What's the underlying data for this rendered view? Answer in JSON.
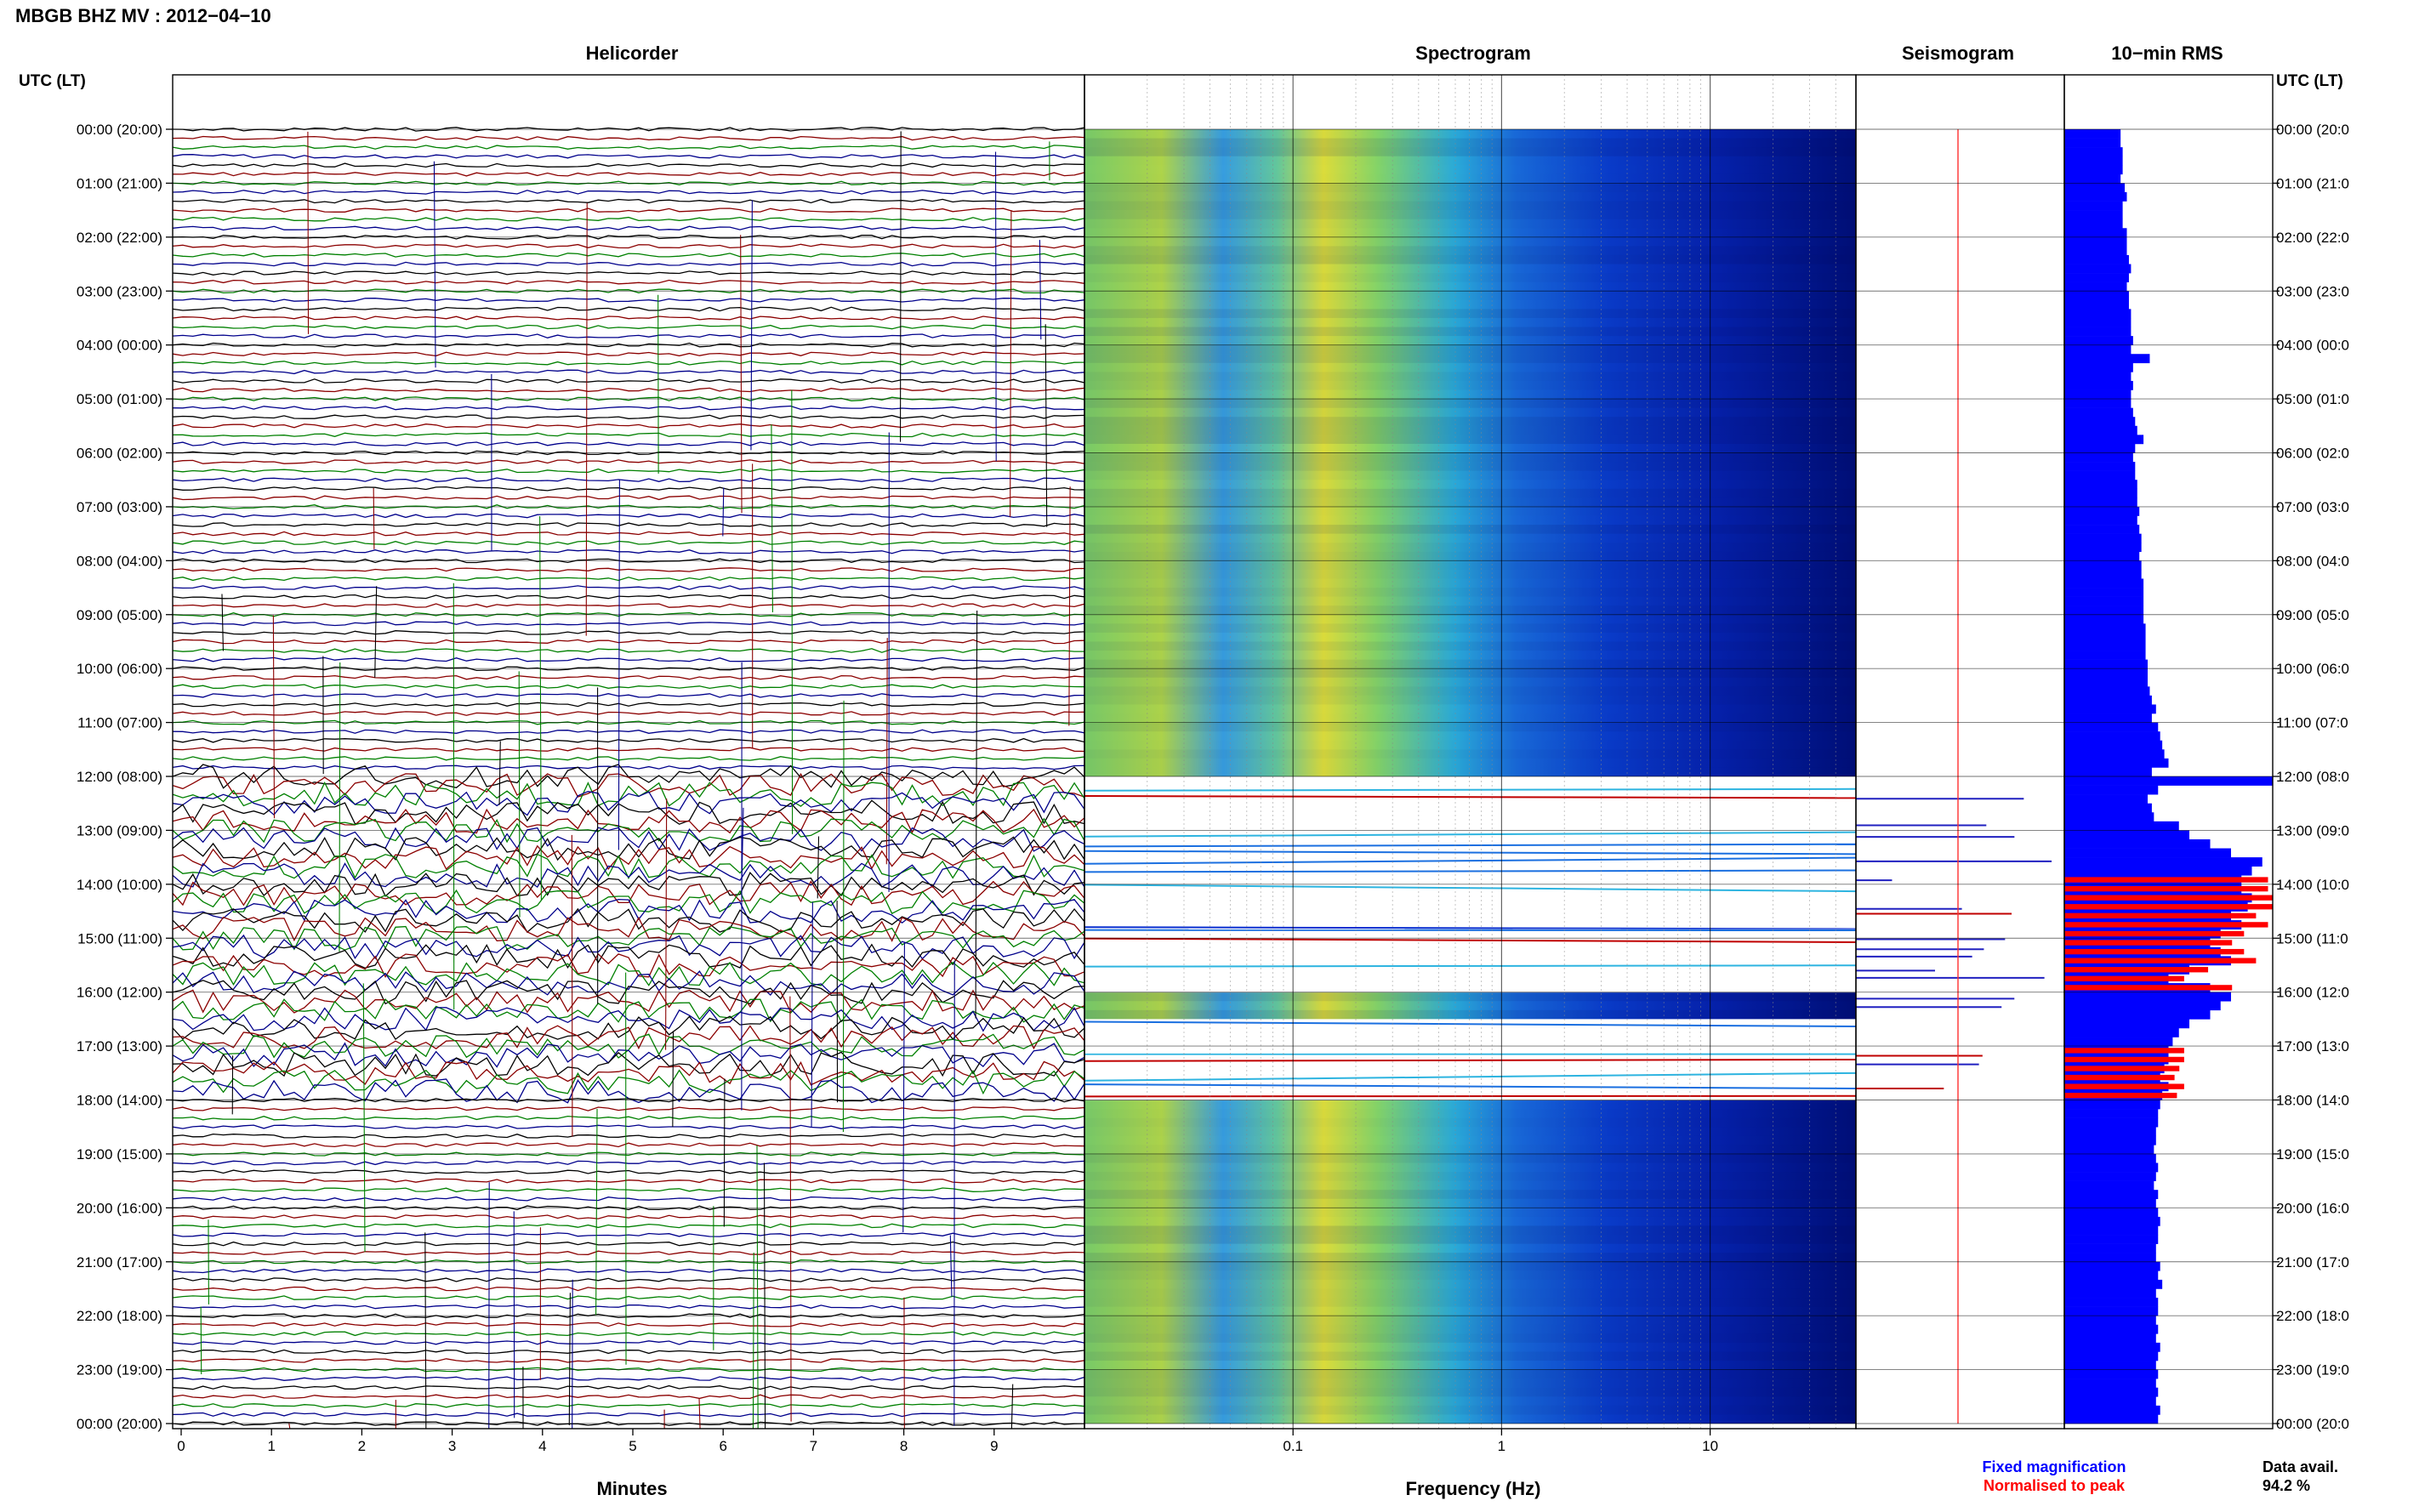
{
  "title": "MBGB BHZ MV : 2012−04−10",
  "panels": {
    "helicorder": "Helicorder",
    "spectrogram": "Spectrogram",
    "seismogram": "Seismogram",
    "rms": "10−min RMS"
  },
  "left_axis_label": "UTC (LT)",
  "right_axis_label": "UTC (LT)",
  "left_time_ticks": [
    "00:00 (20:00)",
    "01:00 (21:00)",
    "02:00 (22:00)",
    "03:00 (23:00)",
    "04:00 (00:00)",
    "05:00 (01:00)",
    "06:00 (02:00)",
    "07:00 (03:00)",
    "08:00 (04:00)",
    "09:00 (05:00)",
    "10:00 (06:00)",
    "11:00 (07:00)",
    "12:00 (08:00)",
    "13:00 (09:00)",
    "14:00 (10:00)",
    "15:00 (11:00)",
    "16:00 (12:00)",
    "17:00 (13:00)",
    "18:00 (14:00)",
    "19:00 (15:00)",
    "20:00 (16:00)",
    "21:00 (17:00)",
    "22:00 (18:00)",
    "23:00 (19:00)",
    "00:00 (20:00)"
  ],
  "right_time_ticks": [
    "00:00 (20:0",
    "01:00 (21:0",
    "02:00 (22:0",
    "03:00 (23:0",
    "04:00 (00:0",
    "05:00 (01:0",
    "06:00 (02:0",
    "07:00 (03:0",
    "08:00 (04:0",
    "09:00 (05:0",
    "10:00 (06:0",
    "11:00 (07:0",
    "12:00 (08:0",
    "13:00 (09:0",
    "14:00 (10:0",
    "15:00 (11:0",
    "16:00 (12:0",
    "17:00 (13:0",
    "18:00 (14:0",
    "19:00 (15:0",
    "20:00 (16:0",
    "21:00 (17:0",
    "22:00 (18:0",
    "23:00 (19:0",
    "00:00 (20:0"
  ],
  "colors": {
    "trace_cycle": [
      "#000000",
      "#8b0000",
      "#008000",
      "#00008b"
    ],
    "rms_fixed": "#0000ff",
    "rms_normalised": "#ff0000",
    "spectrogram_low": "#00008b",
    "spectrogram_high": "#ffff00"
  },
  "chart_data": [
    {
      "type": "line",
      "name": "Helicorder",
      "xlabel": "Minutes",
      "x_ticks": [
        "0",
        "1",
        "2",
        "3",
        "4",
        "5",
        "6",
        "7",
        "8",
        "9"
      ],
      "xlim": [
        0,
        10
      ],
      "ylim_hours": [
        0,
        24
      ],
      "lines_per_hour": 6
    },
    {
      "type": "heatmap",
      "name": "Spectrogram",
      "xlabel": "Frequency (Hz)",
      "x_scale": "log",
      "x_ticks": [
        "0.1",
        "1",
        "10"
      ],
      "xlim": [
        0.01,
        50
      ],
      "ylim_hours": [
        0,
        24
      ],
      "energy_peak_hz": 0.2,
      "gap_intervals_hours": [
        [
          12.0,
          16.0
        ],
        [
          16.5,
          18.0
        ]
      ]
    },
    {
      "type": "bar",
      "name": "10−min RMS",
      "orientation": "horizontal",
      "interval_minutes": 10,
      "legend": [
        "Fixed magnification",
        "Normalised to peak"
      ],
      "fixed_magnification_rms": [
        0.27,
        0.27,
        0.28,
        0.28,
        0.28,
        0.27,
        0.29,
        0.3,
        0.28,
        0.28,
        0.28,
        0.3,
        0.3,
        0.3,
        0.31,
        0.32,
        0.31,
        0.3,
        0.31,
        0.31,
        0.32,
        0.32,
        0.32,
        0.33,
        0.32,
        0.41,
        0.33,
        0.32,
        0.33,
        0.32,
        0.32,
        0.33,
        0.34,
        0.35,
        0.38,
        0.34,
        0.33,
        0.34,
        0.34,
        0.35,
        0.35,
        0.35,
        0.36,
        0.35,
        0.36,
        0.37,
        0.37,
        0.36,
        0.37,
        0.37,
        0.38,
        0.38,
        0.38,
        0.38,
        0.38,
        0.39,
        0.39,
        0.39,
        0.39,
        0.4,
        0.4,
        0.4,
        0.41,
        0.42,
        0.44,
        0.42,
        0.45,
        0.46,
        0.47,
        0.48,
        0.5,
        0.42,
        1.0,
        0.45,
        0.4,
        0.42,
        0.43,
        0.55,
        0.6,
        0.7,
        0.8,
        0.95,
        0.9,
        0.85,
        0.85,
        0.9,
        0.88,
        0.8,
        0.85,
        0.75,
        0.7,
        0.75,
        0.8,
        0.6,
        0.5,
        0.7,
        0.8,
        0.75,
        0.7,
        0.6,
        0.55,
        0.52,
        0.5,
        0.5,
        0.48,
        0.46,
        0.5,
        0.47,
        0.46,
        0.45,
        0.45,
        0.44,
        0.44,
        0.43,
        0.44,
        0.45,
        0.44,
        0.43,
        0.45,
        0.44,
        0.45,
        0.46,
        0.45,
        0.45,
        0.44,
        0.44,
        0.46,
        0.45,
        0.47,
        0.44,
        0.45,
        0.45,
        0.44,
        0.45,
        0.44,
        0.46,
        0.45,
        0.44,
        0.45,
        0.44,
        0.45,
        0.44,
        0.46,
        0.45
      ],
      "normalised_red_hours": [
        [
          13.75,
          16.0
        ],
        [
          17.0,
          18.0
        ]
      ]
    }
  ],
  "legend": {
    "fixed": "Fixed magnification",
    "normalised": "Normalised to peak"
  },
  "footer": {
    "data_avail_label": "Data avail.",
    "data_avail_value": "94.2 %"
  }
}
